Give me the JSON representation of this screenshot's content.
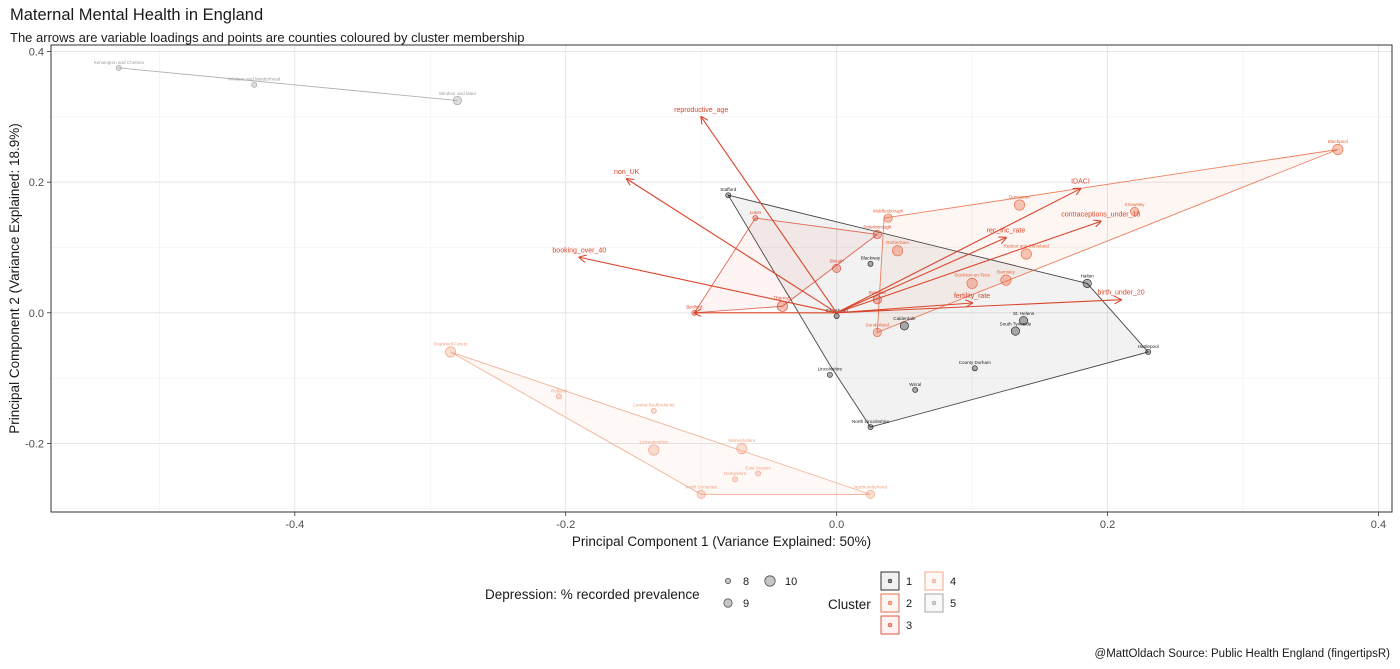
{
  "header": {
    "title": "Maternal Mental Health in England",
    "subtitle": "The arrows are variable loadings and points are counties coloured by cluster membership"
  },
  "caption": "@MattOldach Source: Public Health England (fingertipsR)",
  "colors": {
    "cluster_1": "#1a1a1a",
    "cluster_2": "#e8623a",
    "cluster_3": "#d9452b",
    "cluster_4": "#f0a07e",
    "cluster_5": "#9e9e9e",
    "arrow": "#d9452b"
  },
  "chart_data": {
    "type": "scatter",
    "title": "Maternal Mental Health in England",
    "xlabel": "Principal Component 1 (Variance Explained: 50%)",
    "ylabel": "Principal Component 2 (Variance Explained: 18.9%)",
    "xlim": [
      -0.58,
      0.41
    ],
    "ylim": [
      -0.305,
      0.41
    ],
    "xticks": [
      -0.4,
      -0.2,
      0.0,
      0.2,
      0.4
    ],
    "xtick_labels": [
      "-0.4",
      "-0.2",
      "0.0",
      "0.2",
      "0.4"
    ],
    "yticks": [
      -0.2,
      0.0,
      0.2,
      0.4
    ],
    "ytick_labels": [
      "-0.2",
      "0.0",
      "0.2",
      "0.4"
    ],
    "grid": true,
    "size_legend": {
      "title": "Depression: % recorded prevalence",
      "values": [
        8,
        9,
        10
      ]
    },
    "cluster_legend": {
      "title": "Cluster",
      "values": [
        "1",
        "2",
        "3",
        "4",
        "5"
      ]
    },
    "hulls": [
      {
        "cluster": "5",
        "x": [
          -0.53,
          -0.28
        ],
        "y": [
          0.375,
          0.325
        ]
      },
      {
        "cluster": "1",
        "x": [
          -0.08,
          0.185,
          0.23,
          0.025,
          -0.005
        ],
        "y": [
          0.18,
          0.045,
          -0.06,
          -0.175,
          -0.08
        ]
      },
      {
        "cluster": "2",
        "x": [
          0.035,
          0.37,
          0.03
        ],
        "y": [
          0.145,
          0.25,
          -0.03
        ]
      },
      {
        "cluster": "3",
        "x": [
          -0.105,
          -0.06,
          0.03,
          -0.04
        ],
        "y": [
          0.0,
          0.145,
          0.12,
          0.01
        ]
      },
      {
        "cluster": "4",
        "x": [
          -0.285,
          0.025,
          -0.1
        ],
        "y": [
          -0.06,
          -0.278,
          -0.278
        ]
      }
    ],
    "points": [
      {
        "label": "Kensington and Chelsea",
        "x": -0.53,
        "y": 0.375,
        "cluster": "5",
        "size": 8
      },
      {
        "label": "Windsor and Maidenhead",
        "x": -0.43,
        "y": 0.349,
        "cluster": "5",
        "size": 8
      },
      {
        "label": "Windsor and Maid",
        "x": -0.28,
        "y": 0.325,
        "cluster": "5",
        "size": 9
      },
      {
        "label": "Stafford",
        "x": -0.08,
        "y": 0.18,
        "cluster": "1",
        "size": 8
      },
      {
        "label": "Halton",
        "x": 0.185,
        "y": 0.045,
        "cluster": "1",
        "size": 9
      },
      {
        "label": "Hartlepool",
        "x": 0.23,
        "y": -0.06,
        "cluster": "1",
        "size": 8
      },
      {
        "label": "North Lincolnshire",
        "x": 0.025,
        "y": -0.175,
        "cluster": "1",
        "size": 8
      },
      {
        "label": "Lincolnshire",
        "x": -0.005,
        "y": -0.095,
        "cluster": "1",
        "size": 8
      },
      {
        "label": "Gateshead",
        "x": 0.0,
        "y": -0.005,
        "cluster": "1",
        "size": 8
      },
      {
        "label": "Calderdale",
        "x": 0.05,
        "y": -0.02,
        "cluster": "1",
        "size": 9
      },
      {
        "label": "St. Helens",
        "x": 0.138,
        "y": -0.012,
        "cluster": "1",
        "size": 9
      },
      {
        "label": "South Tyneside",
        "x": 0.132,
        "y": -0.028,
        "cluster": "1",
        "size": 9
      },
      {
        "label": "County Durham",
        "x": 0.102,
        "y": -0.085,
        "cluster": "1",
        "size": 8
      },
      {
        "label": "Wirral",
        "x": 0.058,
        "y": -0.118,
        "cluster": "1",
        "size": 8
      },
      {
        "label": "Blackway",
        "x": 0.025,
        "y": 0.075,
        "cluster": "1",
        "size": 8
      },
      {
        "label": "Blackpool",
        "x": 0.37,
        "y": 0.25,
        "cluster": "2",
        "size": 10
      },
      {
        "label": "Doncaster",
        "x": 0.135,
        "y": 0.165,
        "cluster": "2",
        "size": 10
      },
      {
        "label": "Knowsley",
        "x": 0.22,
        "y": 0.155,
        "cluster": "2",
        "size": 9
      },
      {
        "label": "Middlesbrough",
        "x": 0.038,
        "y": 0.145,
        "cluster": "2",
        "size": 9
      },
      {
        "label": "Redcar and Cleveland",
        "x": 0.14,
        "y": 0.09,
        "cluster": "2",
        "size": 10
      },
      {
        "label": "Rotherham",
        "x": 0.045,
        "y": 0.095,
        "cluster": "2",
        "size": 10
      },
      {
        "label": "Stockton-on-Tees",
        "x": 0.1,
        "y": 0.045,
        "cluster": "2",
        "size": 10
      },
      {
        "label": "Barnsley",
        "x": 0.125,
        "y": 0.05,
        "cluster": "2",
        "size": 10
      },
      {
        "label": "Sunderland",
        "x": 0.03,
        "y": -0.03,
        "cluster": "2",
        "size": 9
      },
      {
        "label": "Bedford",
        "x": -0.105,
        "y": 0.0,
        "cluster": "3",
        "size": 8
      },
      {
        "label": "Luton",
        "x": -0.06,
        "y": 0.145,
        "cluster": "3",
        "size": 8
      },
      {
        "label": "Peterborough",
        "x": 0.03,
        "y": 0.12,
        "cluster": "3",
        "size": 9
      },
      {
        "label": "Slough",
        "x": 0.0,
        "y": 0.068,
        "cluster": "3",
        "size": 9
      },
      {
        "label": "Thurrock",
        "x": -0.04,
        "y": 0.01,
        "cluster": "3",
        "size": 10
      },
      {
        "label": "Swindon",
        "x": 0.03,
        "y": 0.02,
        "cluster": "3",
        "size": 9
      },
      {
        "label": "Bracknell Forest",
        "x": -0.285,
        "y": -0.06,
        "cluster": "4",
        "size": 10
      },
      {
        "label": "Rutland",
        "x": -0.205,
        "y": -0.128,
        "cluster": "4",
        "size": 8
      },
      {
        "label": "Central Bedfordshire",
        "x": -0.135,
        "y": -0.15,
        "cluster": "4",
        "size": 8
      },
      {
        "label": "Leicestershire",
        "x": -0.135,
        "y": -0.21,
        "cluster": "4",
        "size": 10
      },
      {
        "label": "Warwickshire",
        "x": -0.07,
        "y": -0.208,
        "cluster": "4",
        "size": 10
      },
      {
        "label": "Derbyshire",
        "x": -0.075,
        "y": -0.255,
        "cluster": "4",
        "size": 8
      },
      {
        "label": "East Sussex",
        "x": -0.058,
        "y": -0.246,
        "cluster": "4",
        "size": 8
      },
      {
        "label": "North Somerset",
        "x": -0.1,
        "y": -0.278,
        "cluster": "4",
        "size": 9
      },
      {
        "label": "Northumberland",
        "x": 0.025,
        "y": -0.278,
        "cluster": "4",
        "size": 9
      }
    ],
    "arrows": [
      {
        "label": "reproductive_age",
        "x": -0.1,
        "y": 0.3
      },
      {
        "label": "non_UK",
        "x": -0.155,
        "y": 0.205
      },
      {
        "label": "booking_over_40",
        "x": -0.19,
        "y": 0.085
      },
      {
        "label": "IDACI",
        "x": 0.18,
        "y": 0.19
      },
      {
        "label": "contraceptions_under_18",
        "x": 0.195,
        "y": 0.14
      },
      {
        "label": "rec_inc_rate",
        "x": 0.125,
        "y": 0.115
      },
      {
        "label": "fertility_rate",
        "x": 0.1,
        "y": 0.015
      },
      {
        "label": "birth_under_20",
        "x": 0.21,
        "y": 0.02
      },
      {
        "label": "",
        "x": -0.105,
        "y": 0.0
      }
    ]
  }
}
